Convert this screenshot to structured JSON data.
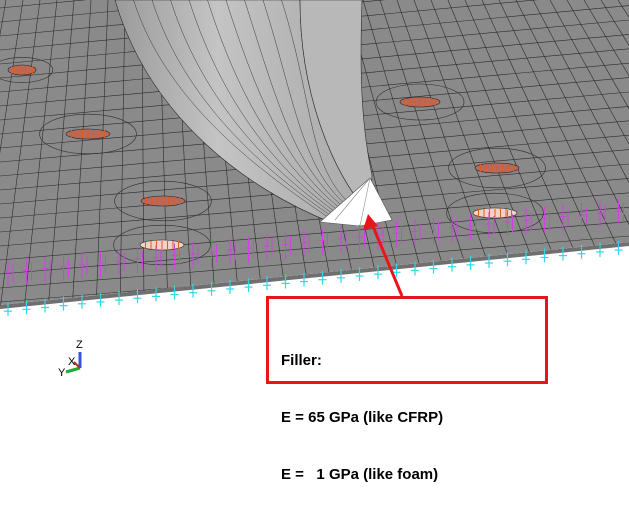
{
  "callout": {
    "line1": "Filler:",
    "line2": "E = 65 GPa (like CFRP)",
    "line3": "E =   1 GPa (like foam)"
  },
  "triad": {
    "z_label": "Z",
    "x_label": "X",
    "y_label": "Y"
  },
  "colors": {
    "mesh_fill": "#8a8a8a",
    "mesh_lines": "#2b2b2b",
    "fillet": "#d9d9d9",
    "filler": "#ffffff",
    "constraint_magenta": "#cc44dd",
    "constraint_cyan": "#33d6e6",
    "callout_red": "#e8161b",
    "bolt_orange": "#e05a1e"
  },
  "icons": [
    "axis-triad-icon",
    "boundary-constraint-icon"
  ]
}
